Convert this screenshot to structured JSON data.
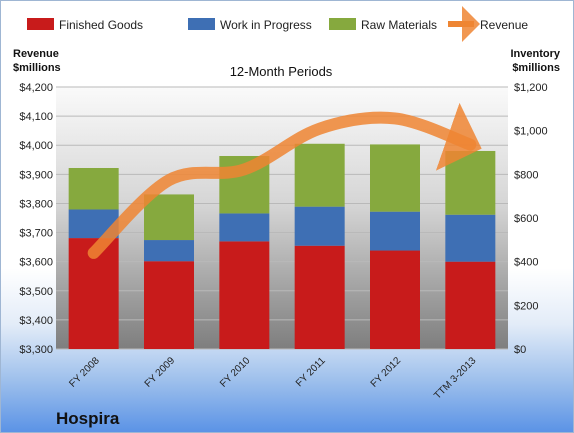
{
  "chart_data": {
    "type": "bar",
    "title": "12-Month Periods",
    "company": "Hospira",
    "y_left_label": [
      "Revenue",
      "$millions"
    ],
    "y_right_label": [
      "Inventory",
      "$millions"
    ],
    "categories": [
      "FY 2008",
      "FY 2009",
      "FY 2010",
      "FY 2011",
      "FY 2012",
      "TTM 3-2013"
    ],
    "y_left_ticks": [
      "$3,300",
      "$3,400",
      "$3,500",
      "$3,600",
      "$3,700",
      "$3,800",
      "$3,900",
      "$4,000",
      "$4,100",
      "$4,200"
    ],
    "y_right_ticks": [
      "$0",
      "$200",
      "$400",
      "$600",
      "$800",
      "$1,000",
      "$1,200"
    ],
    "y_left_range": [
      3300,
      4200
    ],
    "y_right_range": [
      0,
      1200
    ],
    "grid": true,
    "legend_position": "top",
    "series": [
      {
        "name": "Finished Goods",
        "axis": "right",
        "kind": "stacked-bar",
        "color": "#c81b1b",
        "values": [
          508,
          402,
          493,
          473,
          451,
          400
        ]
      },
      {
        "name": "Work in Progress",
        "axis": "right",
        "kind": "stacked-bar",
        "color": "#3e6fb4",
        "values": [
          131,
          97,
          128,
          179,
          178,
          215
        ]
      },
      {
        "name": "Raw Materials",
        "axis": "right",
        "kind": "stacked-bar",
        "color": "#86a93e",
        "values": [
          190,
          209,
          263,
          288,
          308,
          292
        ]
      },
      {
        "name": "Revenue",
        "axis": "left",
        "kind": "line",
        "color": "#ee8533",
        "values": [
          3630,
          3880,
          3917,
          4057,
          4092,
          4002
        ]
      }
    ]
  }
}
